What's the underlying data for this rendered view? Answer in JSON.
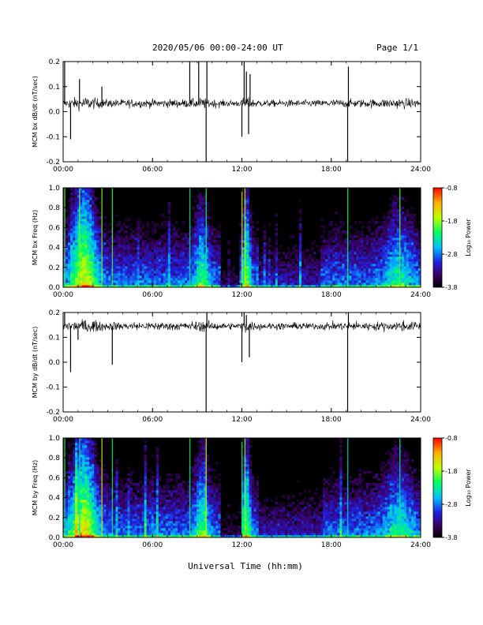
{
  "header": {
    "title": "2020/05/06  00:00-24:00 UT",
    "page": "Page 1/1"
  },
  "xlabel": "Universal Time (hh:mm)",
  "colorbar": {
    "label": "Log₁₀ Power",
    "ticks": [
      "-0.8",
      "-1.8",
      "-2.8",
      "-3.8"
    ],
    "range": [
      -3.8,
      -0.8
    ]
  },
  "chart_data": [
    {
      "type": "line",
      "ylabel": "MCM bx dB/dt (nT/sec)",
      "xlim": [
        0,
        24
      ],
      "ylim": [
        -0.2,
        0.2
      ],
      "xticks": [
        "00:00",
        "06:00",
        "12:00",
        "18:00",
        "24:00"
      ],
      "yticks": [
        "0.2",
        "0.1",
        "0.0",
        "-0.1",
        "-0.2"
      ],
      "baseline": 0.033,
      "noise_amplitude": 0.02,
      "spikes": [
        {
          "x": 0.1,
          "y": 0.2
        },
        {
          "x": 0.5,
          "y": -0.11
        },
        {
          "x": 1.1,
          "y": 0.13
        },
        {
          "x": 2.6,
          "y": 0.1
        },
        {
          "x": 8.5,
          "y": 0.2
        },
        {
          "x": 9.1,
          "y": 0.2
        },
        {
          "x": 9.6,
          "y": -0.2
        },
        {
          "x": 9.65,
          "y": 0.2
        },
        {
          "x": 12.0,
          "y": -0.1
        },
        {
          "x": 12.15,
          "y": 0.2
        },
        {
          "x": 12.3,
          "y": 0.16
        },
        {
          "x": 12.45,
          "y": -0.09
        },
        {
          "x": 12.55,
          "y": 0.15
        },
        {
          "x": 19.1,
          "y": -0.2
        },
        {
          "x": 19.15,
          "y": 0.18
        }
      ]
    },
    {
      "type": "heatmap",
      "ylabel": "MCM bx Freq (Hz)",
      "xlim": [
        0,
        24
      ],
      "ylim": [
        0,
        1
      ],
      "xticks": [
        "00:00",
        "06:00",
        "12:00",
        "18:00",
        "24:00"
      ],
      "yticks": [
        "1.0",
        "0.8",
        "0.6",
        "0.4",
        "0.2",
        "0.0"
      ],
      "zlim": [
        -3.8,
        -0.8
      ]
    },
    {
      "type": "line",
      "ylabel": "MCM by dB/dt (nT/sec)",
      "xlim": [
        0,
        24
      ],
      "ylim": [
        -0.2,
        0.2
      ],
      "xticks": [
        "00:00",
        "06:00",
        "12:00",
        "18:00",
        "24:00"
      ],
      "yticks": [
        "0.2",
        "0.1",
        "0.0",
        "-0.1",
        "-0.2"
      ],
      "baseline": 0.145,
      "noise_amplitude": 0.02,
      "spikes": [
        {
          "x": 0.1,
          "y": 0.2
        },
        {
          "x": 0.5,
          "y": -0.04
        },
        {
          "x": 1.0,
          "y": 0.09
        },
        {
          "x": 3.3,
          "y": -0.01
        },
        {
          "x": 9.6,
          "y": -0.2
        },
        {
          "x": 9.65,
          "y": 0.2
        },
        {
          "x": 12.0,
          "y": 0.0
        },
        {
          "x": 12.15,
          "y": 0.2
        },
        {
          "x": 12.3,
          "y": 0.19
        },
        {
          "x": 12.5,
          "y": 0.02
        },
        {
          "x": 19.1,
          "y": -0.2
        },
        {
          "x": 19.15,
          "y": 0.2
        }
      ]
    },
    {
      "type": "heatmap",
      "ylabel": "MCM by Freq (Hz)",
      "xlim": [
        0,
        24
      ],
      "ylim": [
        0,
        1
      ],
      "xticks": [
        "00:00",
        "06:00",
        "12:00",
        "18:00",
        "24:00"
      ],
      "yticks": [
        "1.0",
        "0.8",
        "0.6",
        "0.4",
        "0.2",
        "0.0"
      ],
      "zlim": [
        -3.8,
        -0.8
      ]
    }
  ]
}
